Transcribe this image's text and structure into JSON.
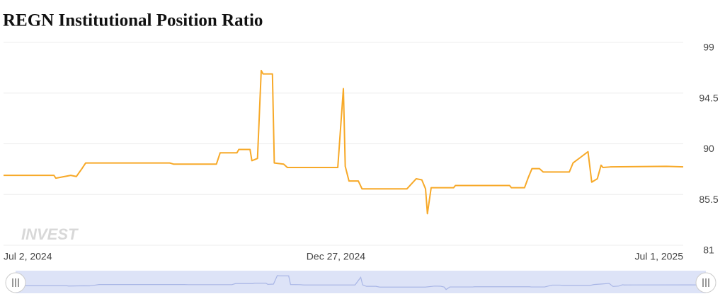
{
  "chart_data": {
    "type": "line",
    "title": "REGN Institutional Position Ratio",
    "watermark": "INVEST",
    "x": [
      "2024-07-02",
      "2024-07-29",
      "2024-07-30",
      "2024-08-07",
      "2024-08-10",
      "2024-08-13",
      "2024-08-15",
      "2024-09-29",
      "2024-10-01",
      "2024-10-24",
      "2024-10-26",
      "2024-11-04",
      "2024-11-05",
      "2024-11-11",
      "2024-11-12",
      "2024-11-15",
      "2024-11-17",
      "2024-11-18",
      "2024-11-23",
      "2024-11-24",
      "2024-11-29",
      "2024-12-01",
      "2024-12-28",
      "2024-12-31",
      "2025-01-01",
      "2025-01-03",
      "2025-01-08",
      "2025-01-10",
      "2025-01-21",
      "2025-02-03",
      "2025-02-08",
      "2025-02-11",
      "2025-02-13",
      "2025-02-14",
      "2025-02-16",
      "2025-02-28",
      "2025-03-01",
      "2025-03-30",
      "2025-03-31",
      "2025-04-07",
      "2025-04-09",
      "2025-04-11",
      "2025-04-15",
      "2025-04-17",
      "2025-05-01",
      "2025-05-03",
      "2025-05-07",
      "2025-05-11",
      "2025-05-13",
      "2025-05-16",
      "2025-05-18",
      "2025-05-19",
      "2025-05-23",
      "2025-06-22",
      "2025-07-01"
    ],
    "series": [
      {
        "name": "REGN",
        "color": "#f7a928",
        "values": [
          87.2,
          87.2,
          86.95,
          87.2,
          87.1,
          87.8,
          88.3,
          88.3,
          88.2,
          88.2,
          89.2,
          89.2,
          89.5,
          89.5,
          88.5,
          88.7,
          96.5,
          96.2,
          96.2,
          88.3,
          88.2,
          87.9,
          87.9,
          94.9,
          88.0,
          86.7,
          86.7,
          86.0,
          86.0,
          86.0,
          86.9,
          86.8,
          86.0,
          83.8,
          86.1,
          86.1,
          86.3,
          86.3,
          86.1,
          86.1,
          87.0,
          87.8,
          87.8,
          87.5,
          87.5,
          88.3,
          88.8,
          89.3,
          86.6,
          86.9,
          88.1,
          87.9,
          87.95,
          88.0,
          87.95
        ]
      }
    ],
    "xlim": [
      "2024-07-02",
      "2025-07-01"
    ],
    "xticks": [
      {
        "value": "2024-07-02",
        "label": "Jul 2, 2024"
      },
      {
        "value": "2024-12-27",
        "label": "Dec 27, 2024"
      },
      {
        "value": "2025-07-01",
        "label": "Jul 1, 2025"
      }
    ],
    "ylim": [
      81,
      99
    ],
    "yticks": [
      81,
      85.5,
      90,
      94.5,
      99
    ],
    "grid": true
  }
}
